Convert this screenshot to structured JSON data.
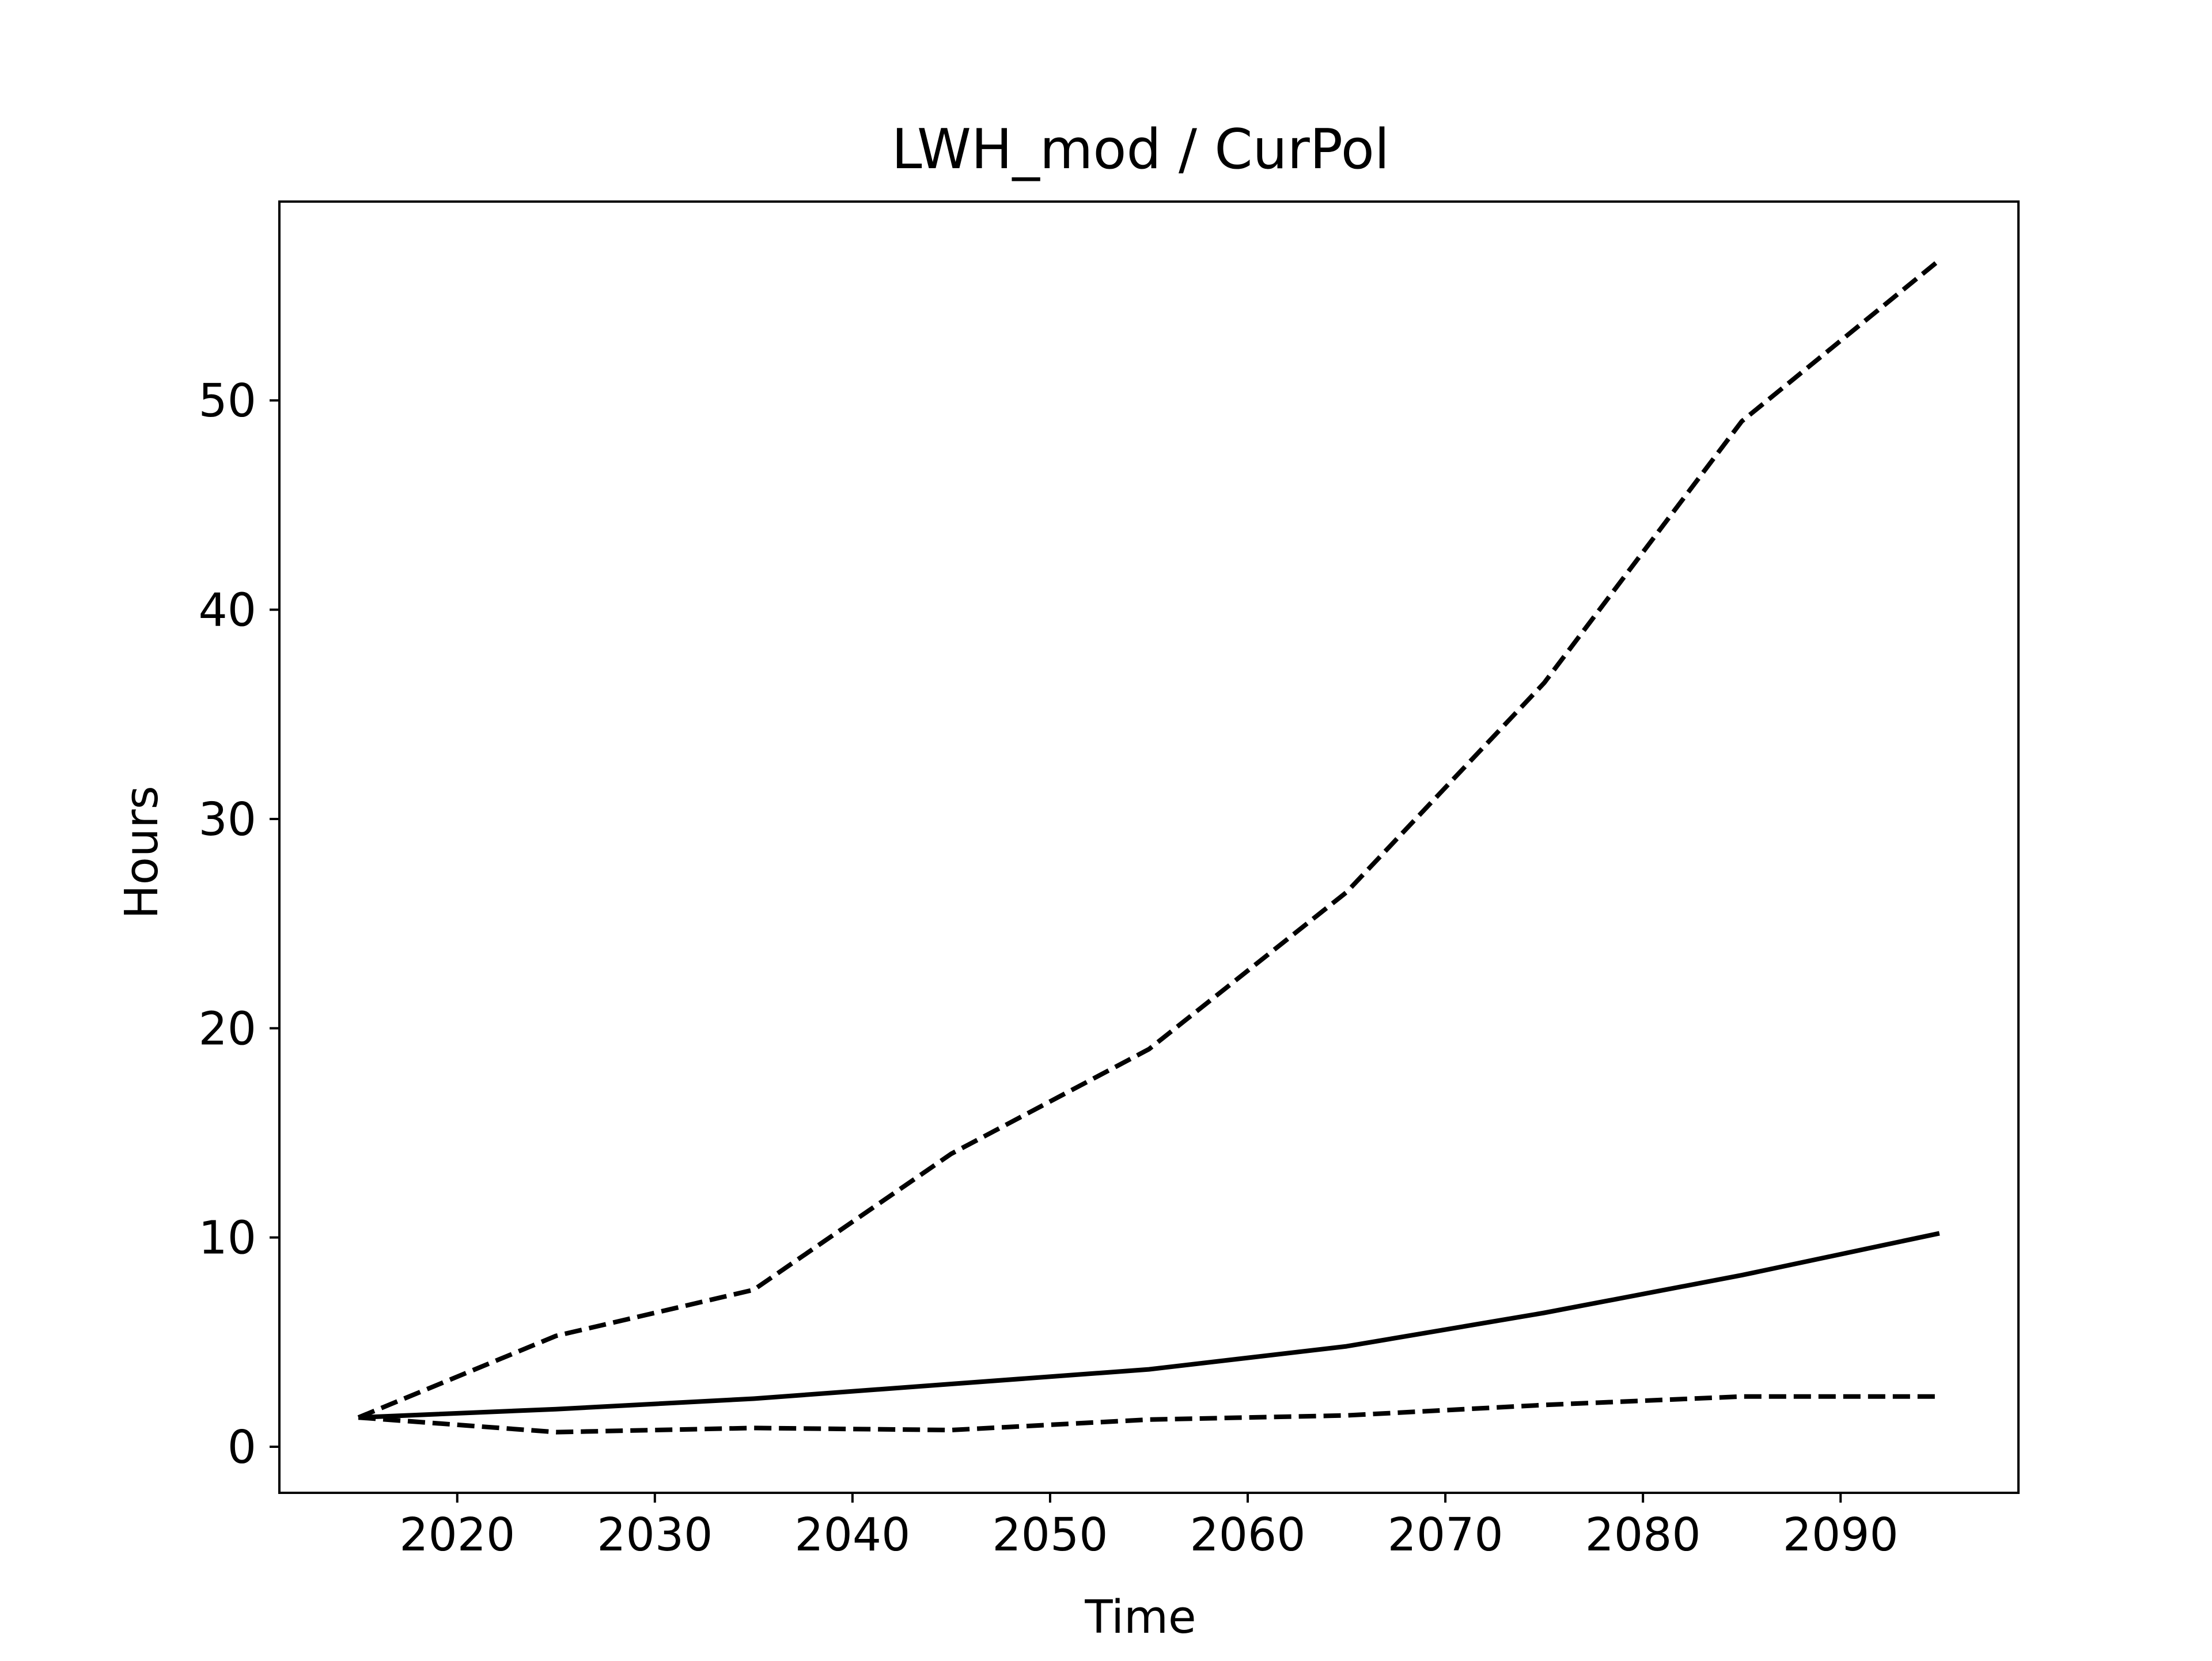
{
  "chart_data": {
    "type": "line",
    "title": "LWH_mod / CurPol",
    "xlabel": "Time",
    "ylabel": "Hours",
    "xlim": [
      2011,
      2099
    ],
    "ylim": [
      -2.2,
      59.5
    ],
    "xticks": [
      2020,
      2030,
      2040,
      2050,
      2060,
      2070,
      2080,
      2090
    ],
    "yticks": [
      0,
      10,
      20,
      30,
      40,
      50
    ],
    "grid": false,
    "legend": "none",
    "x": [
      2015,
      2025,
      2035,
      2045,
      2055,
      2065,
      2075,
      2085,
      2095
    ],
    "series": [
      {
        "style": "solid",
        "color": "#000000",
        "values": [
          1.4,
          1.8,
          2.3,
          3.0,
          3.7,
          4.8,
          6.4,
          8.2,
          10.2
        ]
      },
      {
        "style": "dashed",
        "color": "#000000",
        "values": [
          1.4,
          5.3,
          7.5,
          14.0,
          19.0,
          26.5,
          36.5,
          49.0,
          56.7
        ]
      },
      {
        "style": "dashed",
        "color": "#000000",
        "values": [
          1.4,
          0.7,
          0.9,
          0.8,
          1.3,
          1.5,
          2.0,
          2.4,
          2.4
        ]
      }
    ]
  }
}
